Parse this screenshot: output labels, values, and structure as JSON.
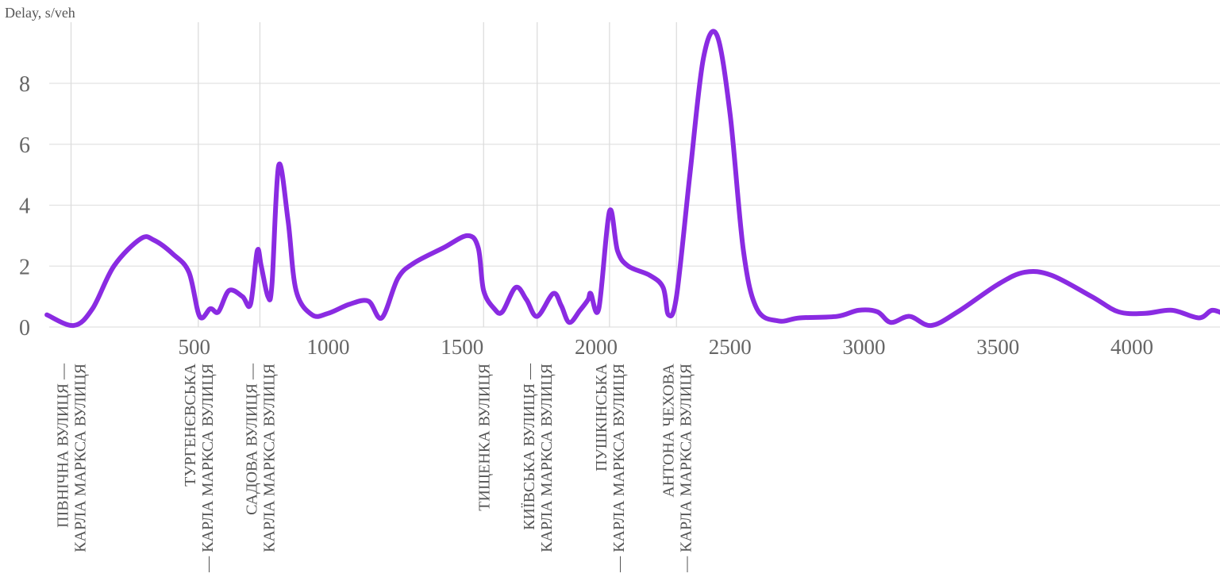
{
  "chart_data": {
    "type": "line",
    "title": "",
    "ylabel": "Delay, s/veh",
    "xlabel": "",
    "xlim": [
      -50,
      4350
    ],
    "ylim": [
      -0.2,
      10
    ],
    "x_ticks": [
      500,
      1000,
      1500,
      2000,
      2500,
      3000,
      3500,
      4000
    ],
    "y_ticks": [
      0,
      2,
      4,
      6,
      8
    ],
    "grid": true,
    "line_color": "#8a2be2",
    "intersections": [
      {
        "x": 40,
        "lines": [
          "ПІВНІЧНА ВУЛИЦЯ —",
          "КАРЛА МАРКСА ВУЛИЦЯ"
        ]
      },
      {
        "x": 515,
        "lines": [
          "ТУРГЕНЄВСЬКА",
          "— КАРЛА МАРКСА ВУЛИЦЯ"
        ]
      },
      {
        "x": 745,
        "lines": [
          "САДОВА ВУЛИЦЯ —",
          "КАРЛА МАРКСА ВУЛИЦЯ"
        ]
      },
      {
        "x": 1580,
        "lines": [
          "ТИЩЕНКА ВУЛИЦЯ"
        ]
      },
      {
        "x": 1780,
        "lines": [
          "КИЇВСЬКА ВУЛИЦЯ —",
          "КАРЛА МАРКСА ВУЛИЦЯ"
        ]
      },
      {
        "x": 2050,
        "lines": [
          "ПУШКІНСЬКА",
          "— КАРЛА МАРКСА ВУЛИЦЯ"
        ]
      },
      {
        "x": 2300,
        "lines": [
          "АНТОНА ЧЕХОВА",
          "— КАРЛА МАРКСА ВУЛИЦЯ"
        ]
      }
    ],
    "series": [
      {
        "points": [
          [
            -50,
            0.4
          ],
          [
            50,
            0.05
          ],
          [
            120,
            0.6
          ],
          [
            200,
            2.0
          ],
          [
            300,
            2.9
          ],
          [
            350,
            2.85
          ],
          [
            420,
            2.4
          ],
          [
            480,
            1.8
          ],
          [
            520,
            0.35
          ],
          [
            560,
            0.6
          ],
          [
            590,
            0.5
          ],
          [
            630,
            1.2
          ],
          [
            680,
            1.0
          ],
          [
            710,
            0.75
          ],
          [
            735,
            2.5
          ],
          [
            750,
            2.0
          ],
          [
            775,
            1.0
          ],
          [
            790,
            1.4
          ],
          [
            815,
            5.3
          ],
          [
            850,
            3.5
          ],
          [
            880,
            1.2
          ],
          [
            940,
            0.4
          ],
          [
            1000,
            0.45
          ],
          [
            1080,
            0.75
          ],
          [
            1150,
            0.85
          ],
          [
            1200,
            0.3
          ],
          [
            1260,
            1.6
          ],
          [
            1320,
            2.1
          ],
          [
            1430,
            2.6
          ],
          [
            1520,
            3.0
          ],
          [
            1560,
            2.6
          ],
          [
            1580,
            1.2
          ],
          [
            1620,
            0.6
          ],
          [
            1650,
            0.5
          ],
          [
            1700,
            1.3
          ],
          [
            1740,
            0.9
          ],
          [
            1780,
            0.35
          ],
          [
            1840,
            1.1
          ],
          [
            1870,
            0.7
          ],
          [
            1900,
            0.15
          ],
          [
            1940,
            0.55
          ],
          [
            1970,
            0.9
          ],
          [
            1980,
            1.1
          ],
          [
            2010,
            0.6
          ],
          [
            2050,
            3.8
          ],
          [
            2080,
            2.5
          ],
          [
            2120,
            2.0
          ],
          [
            2200,
            1.7
          ],
          [
            2250,
            1.3
          ],
          [
            2270,
            0.4
          ],
          [
            2300,
            1.0
          ],
          [
            2350,
            5.0
          ],
          [
            2400,
            8.8
          ],
          [
            2450,
            9.6
          ],
          [
            2500,
            7.0
          ],
          [
            2550,
            2.5
          ],
          [
            2600,
            0.6
          ],
          [
            2680,
            0.2
          ],
          [
            2760,
            0.3
          ],
          [
            2900,
            0.35
          ],
          [
            2980,
            0.55
          ],
          [
            3050,
            0.5
          ],
          [
            3100,
            0.15
          ],
          [
            3170,
            0.35
          ],
          [
            3250,
            0.05
          ],
          [
            3350,
            0.5
          ],
          [
            3500,
            1.4
          ],
          [
            3600,
            1.8
          ],
          [
            3700,
            1.7
          ],
          [
            3850,
            1.0
          ],
          [
            3950,
            0.5
          ],
          [
            4050,
            0.45
          ],
          [
            4150,
            0.55
          ],
          [
            4250,
            0.3
          ],
          [
            4300,
            0.55
          ],
          [
            4350,
            0.4
          ]
        ]
      }
    ]
  }
}
